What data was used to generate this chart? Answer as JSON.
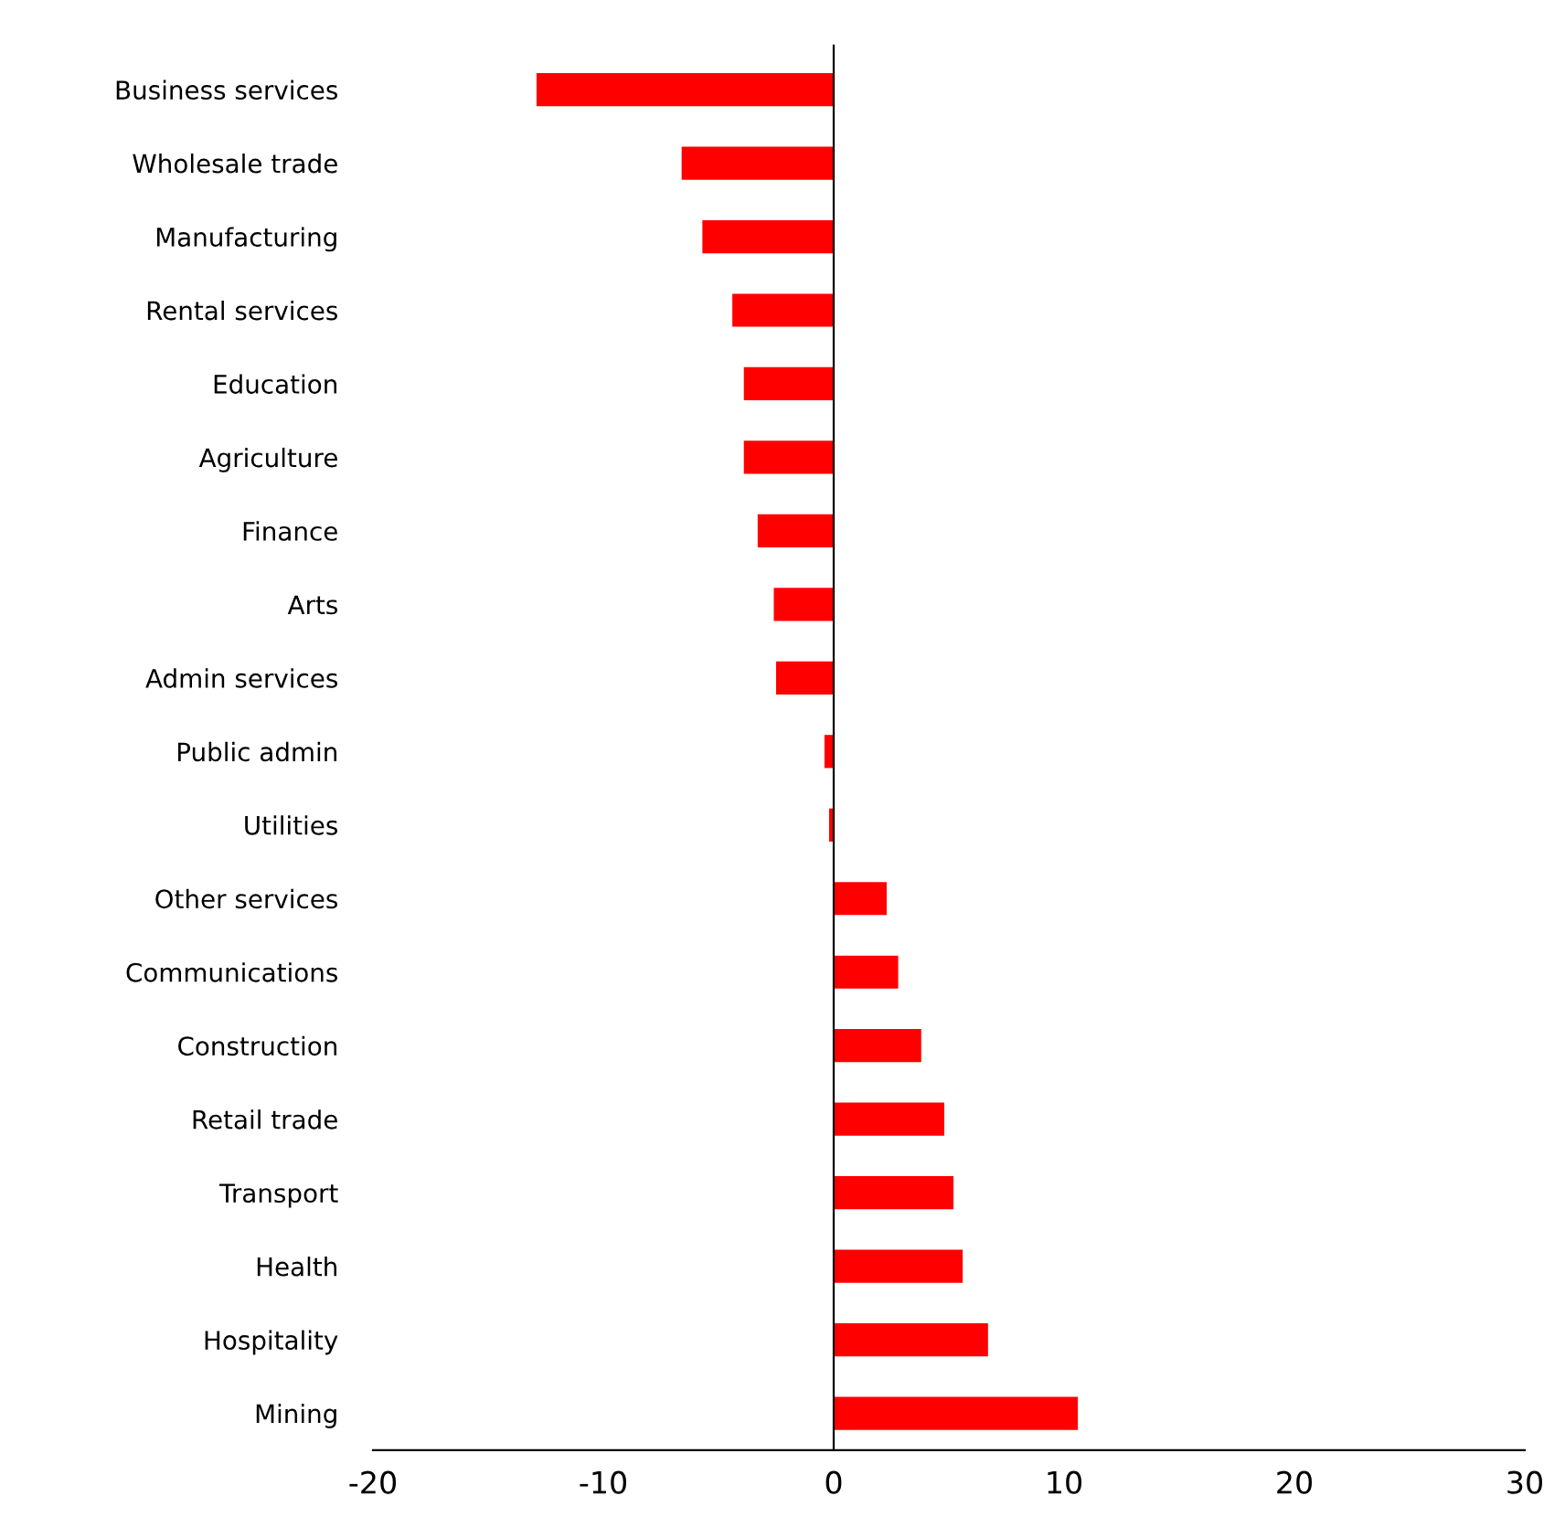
{
  "chart_data": {
    "type": "bar",
    "orientation": "horizontal",
    "categories": [
      "Business services",
      "Wholesale trade",
      "Manufacturing",
      "Rental services",
      "Education",
      "Agriculture",
      "Finance",
      "Arts",
      "Admin services",
      "Public admin",
      "Utilities",
      "Other services",
      "Communications",
      "Construction",
      "Retail trade",
      "Transport",
      "Health",
      "Hospitality",
      "Mining"
    ],
    "values": [
      -12.9,
      -6.6,
      -5.7,
      -4.4,
      -3.9,
      -3.9,
      -3.3,
      -2.6,
      -2.5,
      -0.4,
      -0.2,
      2.3,
      2.8,
      3.8,
      4.8,
      5.2,
      5.6,
      6.7,
      10.6
    ],
    "color": "#ff0000",
    "xlim": [
      -20,
      30
    ],
    "xticks": [
      -20,
      -10,
      0,
      10,
      20,
      30
    ]
  }
}
